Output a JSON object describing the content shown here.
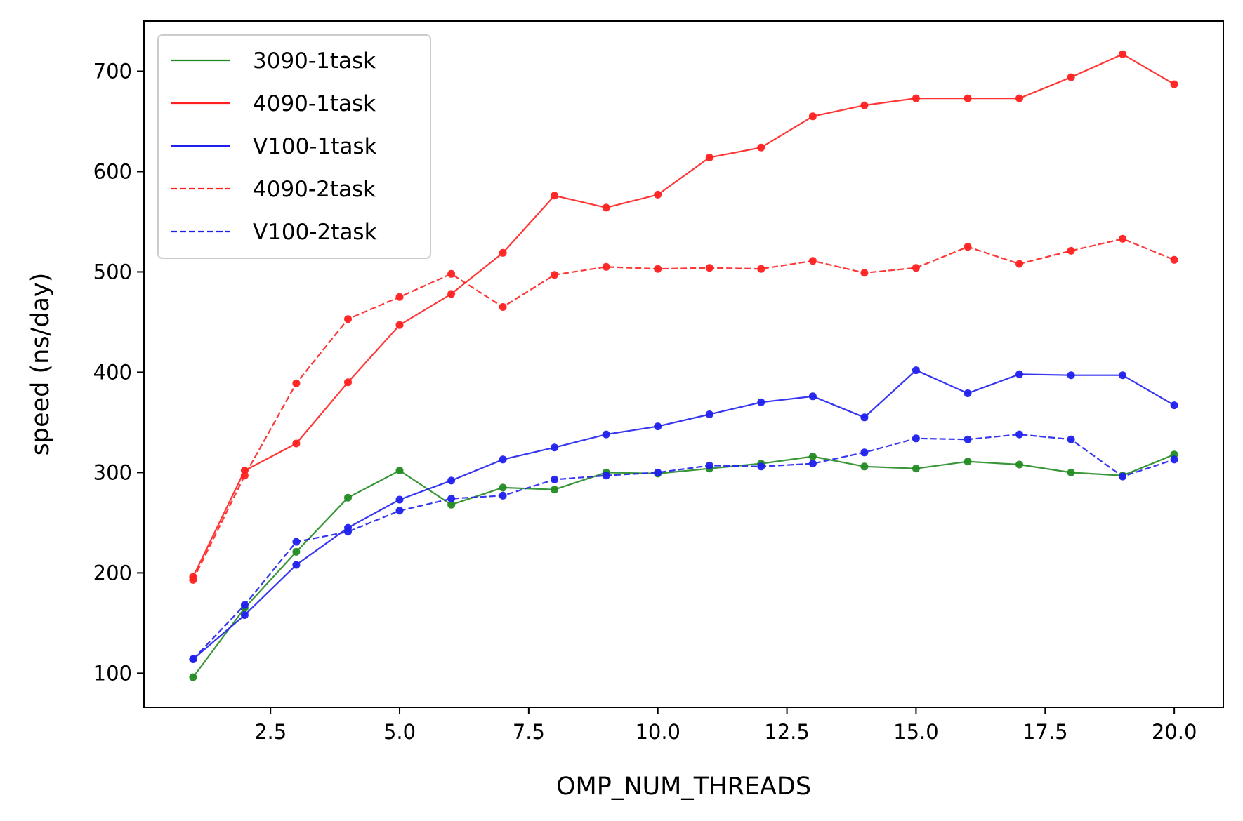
{
  "chart_data": {
    "type": "line",
    "xlabel": "OMP_NUM_THREADS",
    "ylabel": "speed (ns/day)",
    "xlim": [
      0.05,
      20.95
    ],
    "ylim": [
      66,
      750
    ],
    "xticks": [
      2.5,
      5.0,
      7.5,
      10.0,
      12.5,
      15.0,
      17.5,
      20.0
    ],
    "xtick_labels": [
      "2.5",
      "5.0",
      "7.5",
      "10.0",
      "12.5",
      "15.0",
      "17.5",
      "20.0"
    ],
    "yticks": [
      100,
      200,
      300,
      400,
      500,
      600,
      700
    ],
    "ytick_labels": [
      "100",
      "200",
      "300",
      "400",
      "500",
      "600",
      "700"
    ],
    "grid": false,
    "legend_position": "top-left",
    "x": [
      1,
      2,
      3,
      4,
      5,
      6,
      7,
      8,
      9,
      10,
      11,
      12,
      13,
      14,
      15,
      16,
      17,
      18,
      19,
      20
    ],
    "series": [
      {
        "name": "3090-1task",
        "color": "#228b22",
        "dash": "solid",
        "values": [
          96,
          165,
          221,
          275,
          302,
          268,
          285,
          283,
          300,
          299,
          304,
          309,
          316,
          306,
          304,
          311,
          308,
          300,
          297,
          318
        ]
      },
      {
        "name": "4090-1task",
        "color": "#ff2020",
        "dash": "solid",
        "values": [
          196,
          302,
          329,
          390,
          447,
          478,
          519,
          576,
          564,
          577,
          614,
          624,
          655,
          666,
          673,
          673,
          673,
          694,
          717,
          687
        ]
      },
      {
        "name": "V100-1task",
        "color": "#2020ee",
        "dash": "solid",
        "values": [
          114,
          158,
          208,
          245,
          273,
          292,
          313,
          325,
          338,
          346,
          358,
          370,
          376,
          355,
          402,
          379,
          398,
          397,
          397,
          367
        ]
      },
      {
        "name": "4090-2task",
        "color": "#ff2020",
        "dash": "dashed",
        "values": [
          193,
          297,
          389,
          453,
          475,
          498,
          465,
          497,
          505,
          503,
          504,
          503,
          511,
          499,
          504,
          525,
          508,
          521,
          533,
          512
        ]
      },
      {
        "name": "V100-2task",
        "color": "#2020ee",
        "dash": "dashed",
        "values": [
          114,
          168,
          231,
          241,
          262,
          274,
          277,
          293,
          297,
          300,
          307,
          306,
          309,
          320,
          334,
          333,
          338,
          333,
          296,
          313
        ]
      }
    ]
  }
}
